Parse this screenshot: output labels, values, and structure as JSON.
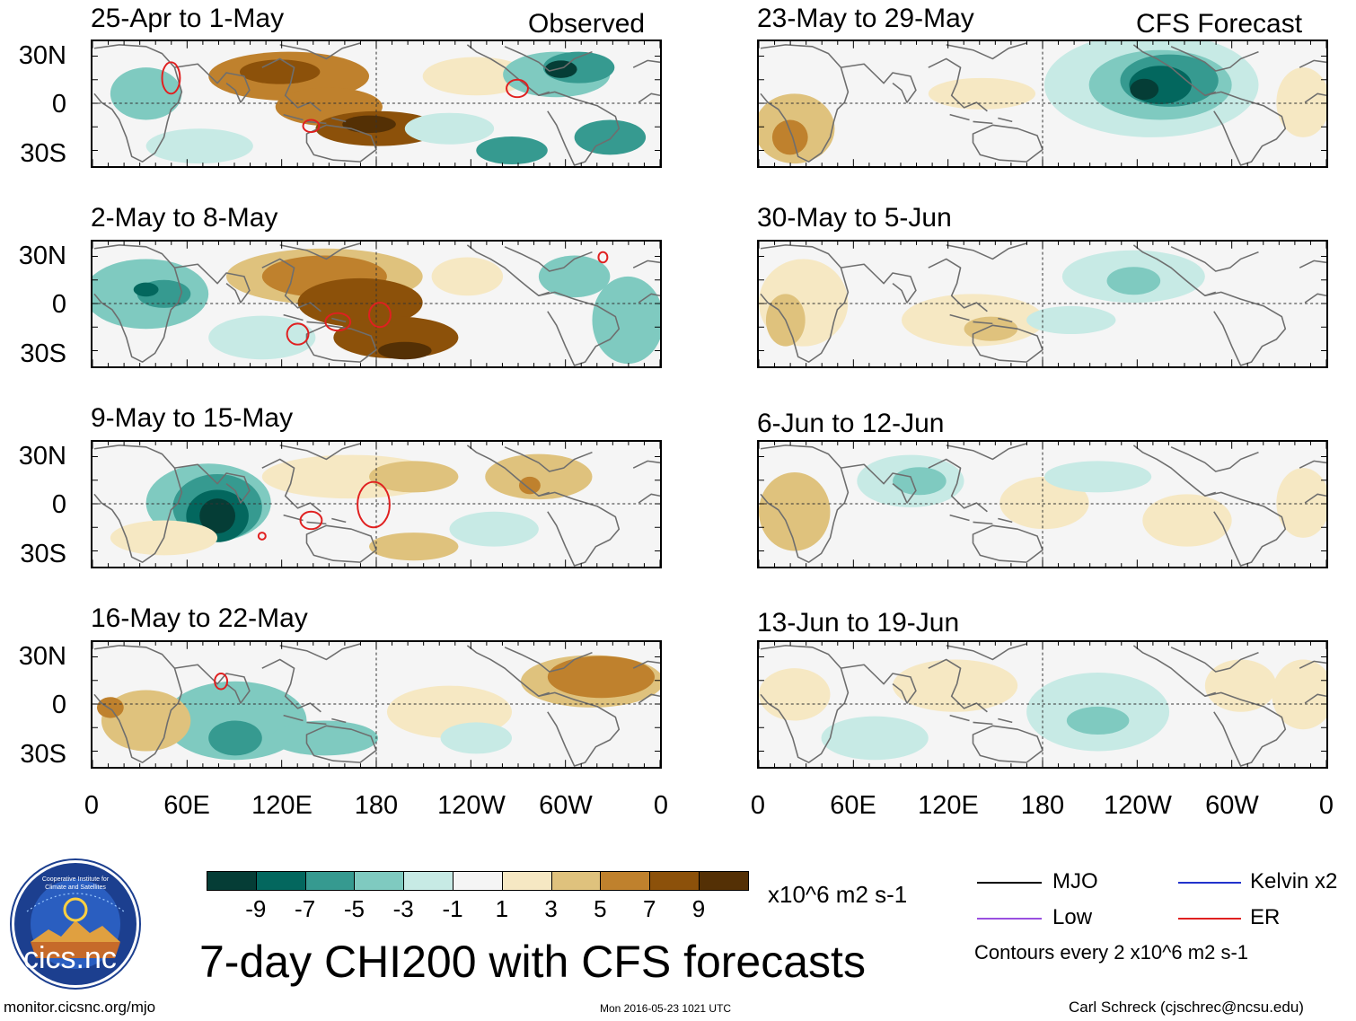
{
  "observed_label": "Observed",
  "forecast_label": "CFS Forecast",
  "colors": {
    "neg9": "#053d36",
    "neg7": "#03675e",
    "neg5": "#369a90",
    "neg3": "#7fcac0",
    "neg1": "#c7eae5",
    "zero": "#f5f5f5",
    "pos1": "#f6e8c3",
    "pos3": "#dfc27d",
    "pos5": "#bf812d",
    "pos7": "#8c510a",
    "pos9": "#543005",
    "mjo": "#000000",
    "low": "#9a4fe0",
    "kelvin": "#2233cc",
    "er": "#e02020",
    "coast": "#6e6e6e"
  },
  "panels": {
    "observed": [
      {
        "title": "25-Apr to 1-May"
      },
      {
        "title": "2-May to 8-May"
      },
      {
        "title": "9-May to 15-May"
      },
      {
        "title": "16-May to 22-May"
      }
    ],
    "forecast": [
      {
        "title": "23-May to 29-May"
      },
      {
        "title": "30-May to 5-Jun"
      },
      {
        "title": "6-Jun to 12-Jun"
      },
      {
        "title": "13-Jun to 19-Jun"
      }
    ]
  },
  "lat_ticks": [
    "30N",
    "0",
    "30S"
  ],
  "lon_ticks": [
    "0",
    "60E",
    "120E",
    "180",
    "120W",
    "60W",
    "0"
  ],
  "colorbar": {
    "labels": [
      "-9",
      "-7",
      "-5",
      "-3",
      "-1",
      "1",
      "3",
      "5",
      "7",
      "9"
    ],
    "units": "x10^6 m2 s-1"
  },
  "legend": {
    "mjo": "MJO",
    "kelvin": "Kelvin x2",
    "low": "Low",
    "er": "ER",
    "contours": "Contours every 2 x10^6 m2 s-1"
  },
  "main_title": "7-day CHI200 with CFS forecasts",
  "logo_text": "cics.nc",
  "logo_ring_text": "Cooperative Institute for Climate and Satellites",
  "footer": {
    "url": "monitor.cicsnc.org/mjo",
    "timestamp": "Mon 2016-05-23 1021 UTC",
    "author": "Carl Schreck (cjschrec@ncsu.edu)"
  }
}
